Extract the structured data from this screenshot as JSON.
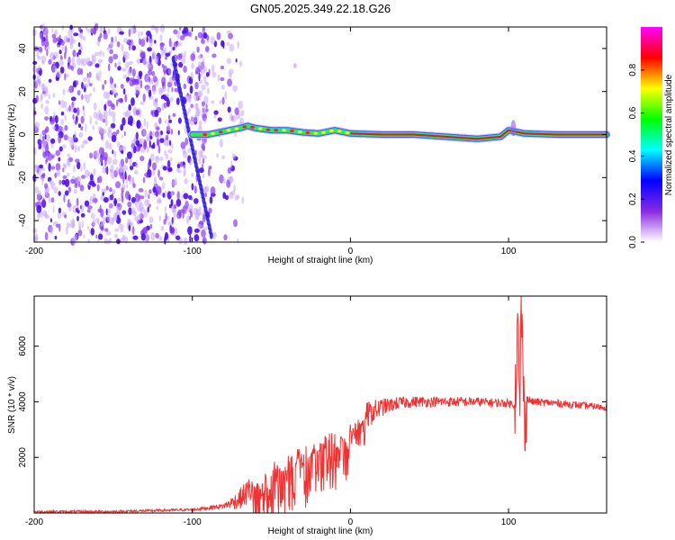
{
  "title": "GN05.2025.349.22.18.G26",
  "chart_data": [
    {
      "type": "heatmap",
      "name": "spectrogram",
      "xlabel": "Height of straight line (km)",
      "ylabel": "Frequency (Hz)",
      "xlim": [
        -200,
        162
      ],
      "ylim": [
        -50,
        50
      ],
      "x_ticks": [
        -200,
        -100,
        0,
        100
      ],
      "y_ticks": [
        -40,
        -20,
        0,
        20,
        40
      ],
      "colorbar": {
        "label": "Normalized spectral amplitude",
        "range": [
          0,
          1
        ],
        "ticks": [
          "0.0",
          "0.2",
          "0.4",
          "0.6",
          "0.8"
        ],
        "colors": [
          "#ffffff",
          "#8a2be2",
          "#0000ff",
          "#00ffff",
          "#00ff00",
          "#ffff00",
          "#ff0000",
          "#ff00ff"
        ]
      },
      "signal_trace": {
        "x": [
          -100,
          -90,
          -80,
          -70,
          -65,
          -60,
          -50,
          -40,
          -30,
          -20,
          -10,
          0,
          20,
          40,
          60,
          80,
          95,
          100,
          103,
          110,
          130,
          162
        ],
        "y": [
          0,
          0,
          1.5,
          3,
          4,
          3,
          2,
          2,
          1,
          0.5,
          2,
          0.5,
          0,
          0,
          -1,
          -2,
          -1,
          2,
          1.5,
          0.5,
          0,
          0
        ]
      },
      "noise_region_x": [
        -200,
        -90
      ],
      "diagonal_streak": {
        "x": [
          -112,
          -88
        ],
        "y": [
          35,
          -47
        ]
      }
    },
    {
      "type": "line",
      "name": "snr",
      "xlabel": "Height of straight line (km)",
      "ylabel": "SNR (10 * v/v)",
      "xlim": [
        -200,
        162
      ],
      "ylim": [
        0,
        7800
      ],
      "x_ticks": [
        -200,
        -100,
        0,
        100
      ],
      "y_ticks": [
        2000,
        4000,
        6000
      ],
      "series": [
        {
          "name": "SNR",
          "color": "#ee3333",
          "envelope": {
            "x": [
              -200,
              -150,
              -100,
              -80,
              -70,
              -60,
              -55,
              -45,
              -35,
              -25,
              -15,
              -5,
              0,
              10,
              20,
              30,
              40,
              60,
              80,
              95,
              100,
              104,
              106,
              107,
              108,
              110,
              112,
              115,
              130,
              150,
              162
            ],
            "y": [
              50,
              50,
              120,
              250,
              500,
              1000,
              1300,
              1700,
              2000,
              2300,
              2600,
              2800,
              3000,
              3500,
              3800,
              3950,
              4000,
              4000,
              4000,
              3950,
              3950,
              3900,
              7000,
              3000,
              7800,
              3200,
              4100,
              4000,
              3950,
              3850,
              3800
            ]
          },
          "noise_amplitude": {
            "x": [
              -200,
              -100,
              -80,
              -65,
              -55,
              -40,
              -20,
              0,
              10,
              25,
              40,
              100,
              162
            ],
            "y": [
              40,
              50,
              100,
              500,
              900,
              900,
              850,
              800,
              500,
              250,
              200,
              150,
              120
            ]
          }
        }
      ]
    }
  ]
}
